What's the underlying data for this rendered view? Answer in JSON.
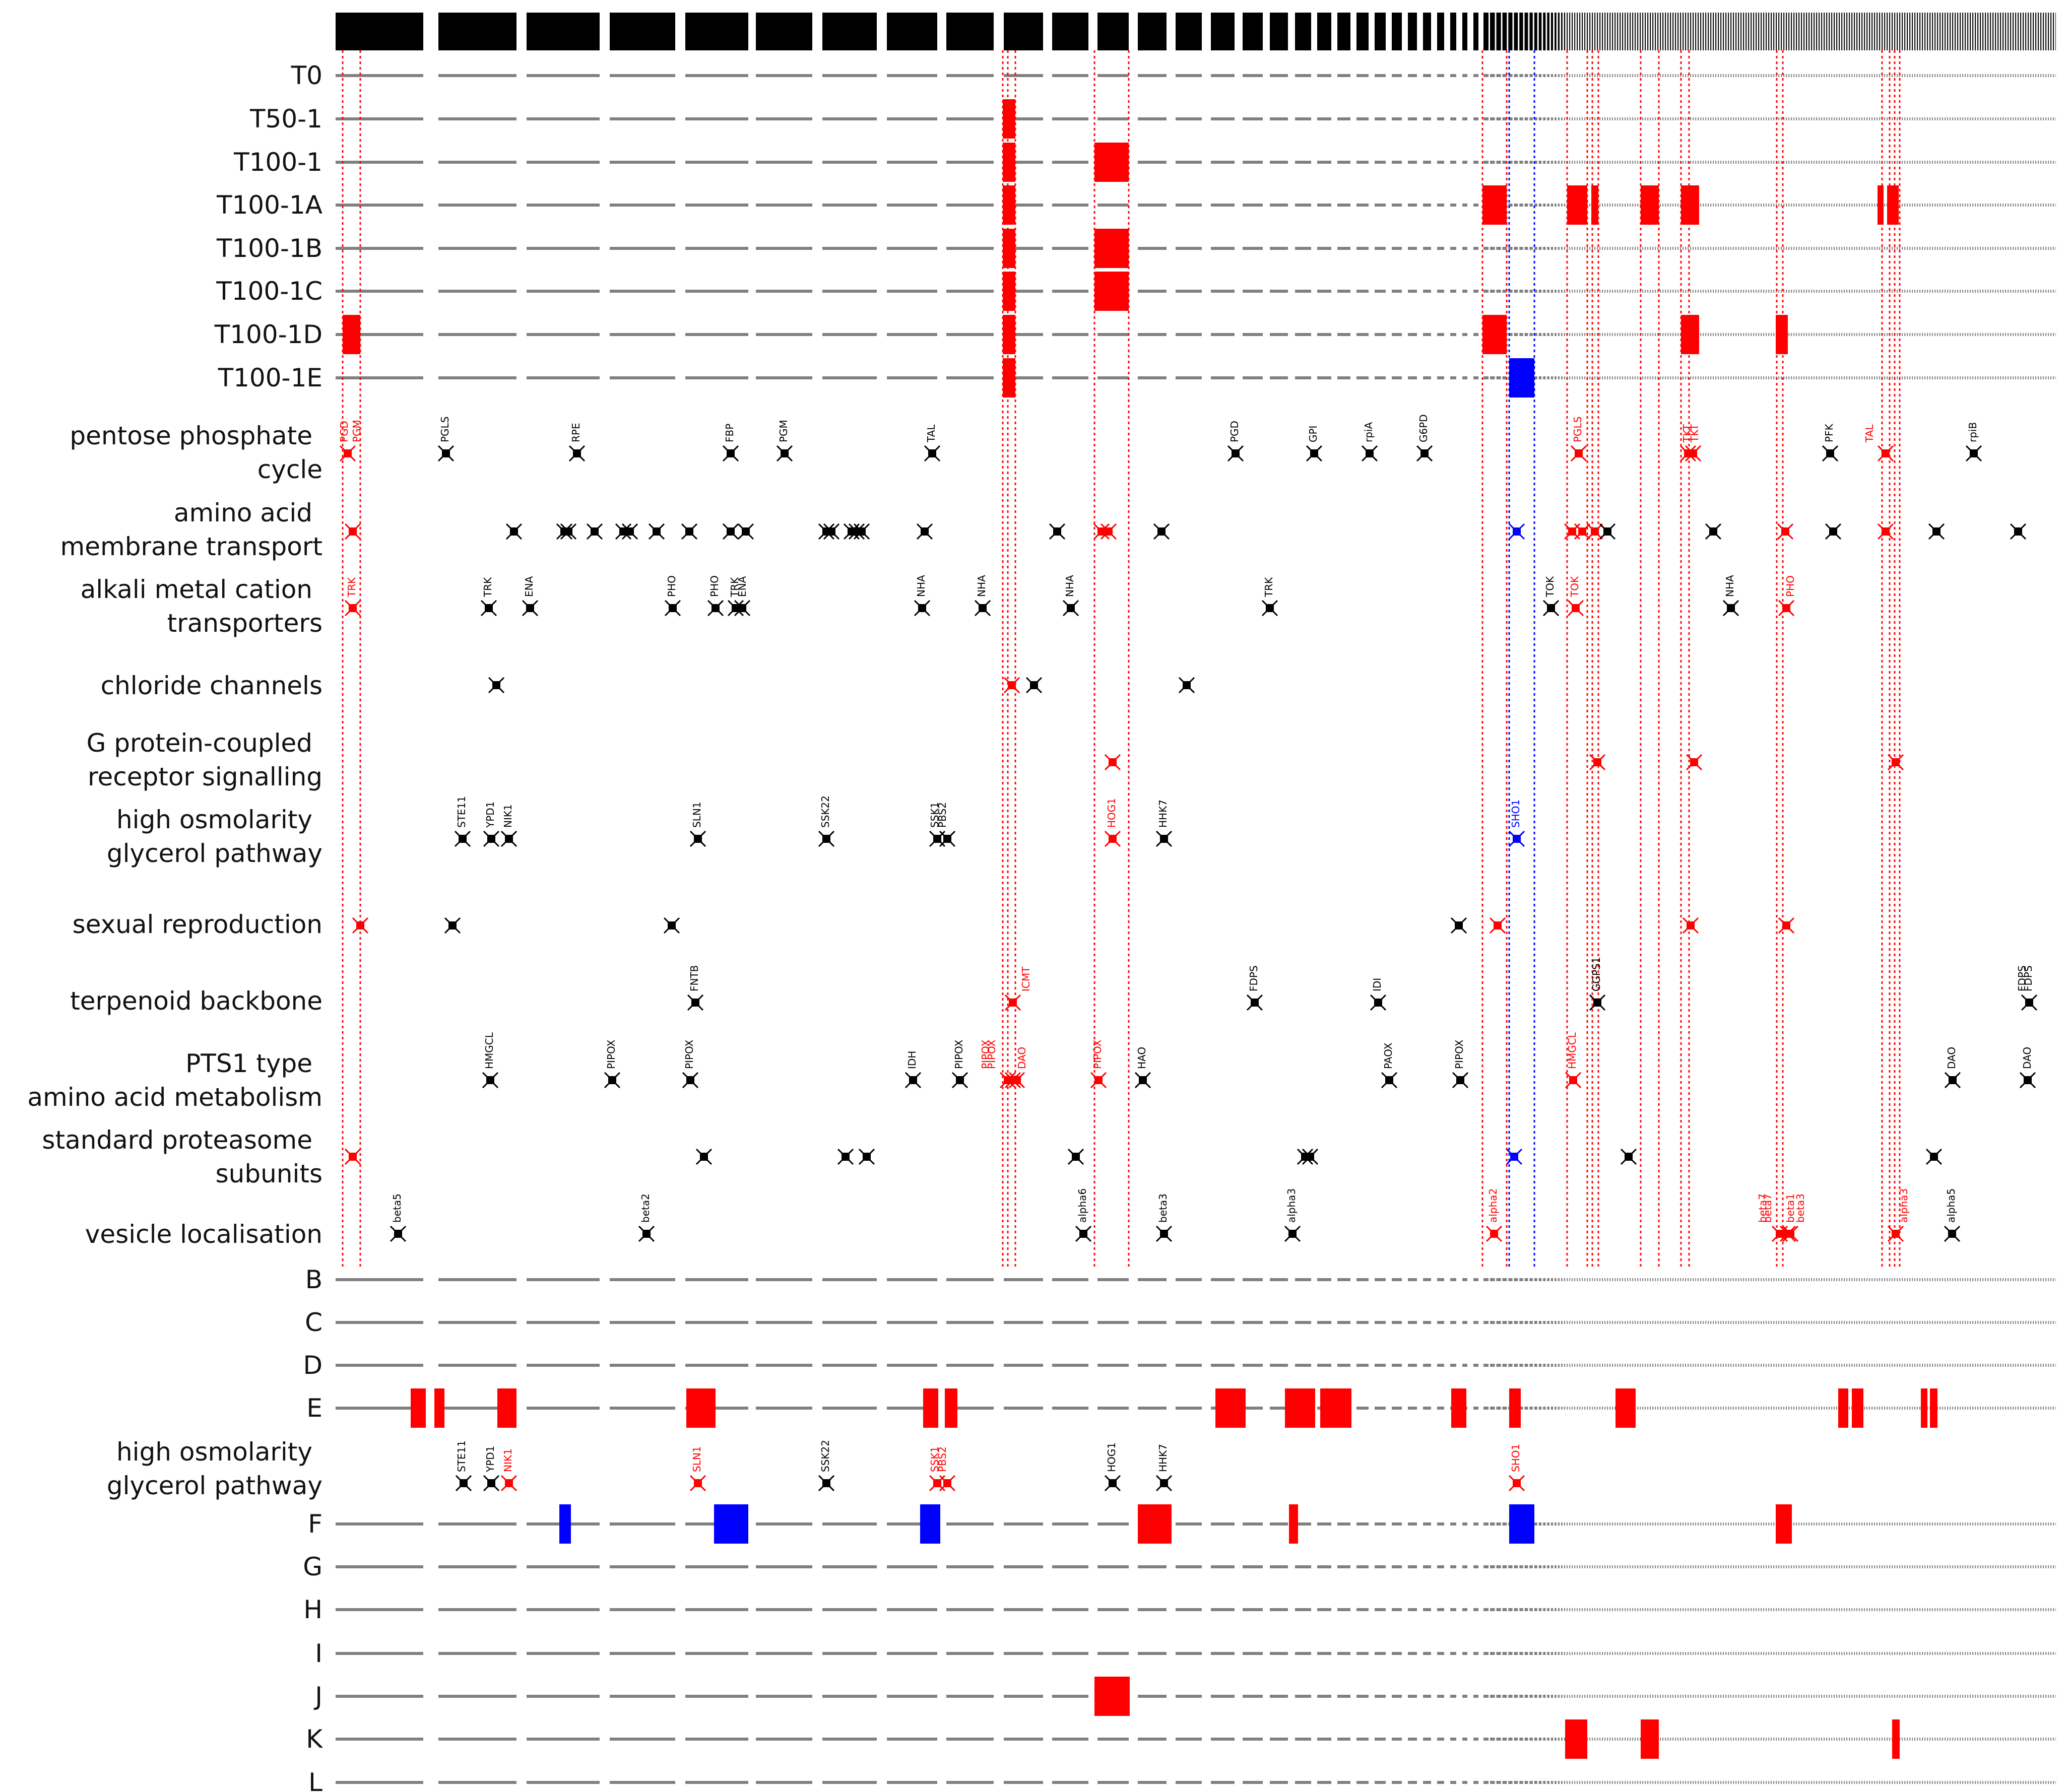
{
  "figure": {
    "colors": {
      "red": "#ff0000",
      "blue": "#0000ff",
      "black": "#000000",
      "gray": "#808080"
    },
    "samples_top": [
      "T0",
      "T50-1",
      "T100-1",
      "T100-1A",
      "T100-1B",
      "T100-1C",
      "T100-1D",
      "T100-1E"
    ],
    "samples_bottom_1": [
      "B",
      "C",
      "D",
      "E"
    ],
    "samples_bottom_2": [
      "F",
      "G",
      "H",
      "I",
      "J",
      "K",
      "L"
    ],
    "pathways": [
      {
        "id": "ppp",
        "line1": "pentose phosphate",
        "line2": "cycle"
      },
      {
        "id": "aat",
        "line1": "amino acid",
        "line2": "membrane transport"
      },
      {
        "id": "alk",
        "line1": "alkali metal cation",
        "line2": "transporters"
      },
      {
        "id": "chl",
        "line1": "chloride channels",
        "line2": ""
      },
      {
        "id": "gpc",
        "line1": "G protein-coupled",
        "line2": "receptor signalling"
      },
      {
        "id": "hog",
        "line1": "high osmolarity",
        "line2": "glycerol pathway"
      },
      {
        "id": "sex",
        "line1": "sexual reproduction",
        "line2": ""
      },
      {
        "id": "ter",
        "line1": "terpenoid backbone",
        "line2": ""
      },
      {
        "id": "pts",
        "line1": "PTS1 type",
        "line2": "amino acid metabolism"
      },
      {
        "id": "pro",
        "line1": "standard proteasome",
        "line2": "subunits"
      },
      {
        "id": "ves",
        "line1": "vesicle localisation",
        "line2": ""
      }
    ],
    "pathway_bottom": {
      "line1": "high osmolarity",
      "line2": "glycerol pathway"
    },
    "gene_labels": {
      "ppp": [
        [
          "PGD",
          "r"
        ],
        [
          "PGM",
          "r"
        ],
        [
          "PGLS",
          "k"
        ],
        [
          "RPE",
          "k"
        ],
        [
          "FBP",
          "k"
        ],
        [
          "PGM",
          "k"
        ],
        [
          "TAL",
          "k"
        ],
        [
          "PGD",
          "k"
        ],
        [
          "GPI",
          "k"
        ],
        [
          "rpiA",
          "k"
        ],
        [
          "G6PD",
          "k"
        ],
        [
          "PGLS",
          "r"
        ],
        [
          "TKT",
          "r"
        ],
        [
          "TKT",
          "r"
        ],
        [
          "PFK",
          "k"
        ],
        [
          "TAL",
          "r"
        ],
        [
          "rpiB",
          "k"
        ]
      ],
      "alk": [
        [
          "TRK",
          "r"
        ],
        [
          "TRK",
          "k"
        ],
        [
          "ENA",
          "k"
        ],
        [
          "PHO",
          "k"
        ],
        [
          "PHO",
          "k"
        ],
        [
          "TRK",
          "k"
        ],
        [
          "ENA",
          "k"
        ],
        [
          "NHA",
          "k"
        ],
        [
          "NHA",
          "k"
        ],
        [
          "NHA",
          "k"
        ],
        [
          "TRK",
          "k"
        ],
        [
          "TOK",
          "k"
        ],
        [
          "TOK",
          "r"
        ],
        [
          "NHA",
          "k"
        ],
        [
          "PHO",
          "r"
        ]
      ],
      "hog": [
        [
          "STE11",
          "k"
        ],
        [
          "YPD1",
          "k"
        ],
        [
          "NIK1",
          "k"
        ],
        [
          "SLN1",
          "k"
        ],
        [
          "SSK22",
          "k"
        ],
        [
          "SSK1",
          "k"
        ],
        [
          "PBS2",
          "k"
        ],
        [
          "HOG1",
          "r"
        ],
        [
          "HHK7",
          "k"
        ],
        [
          "SHO1",
          "b"
        ]
      ],
      "ter": [
        [
          "FNTB",
          "k"
        ],
        [
          "ICMT",
          "r"
        ],
        [
          "FDPS",
          "k"
        ],
        [
          "IDI",
          "k"
        ],
        [
          "GGPS1",
          "k"
        ],
        [
          "FDPS",
          "k"
        ],
        [
          "FDPS",
          "k"
        ]
      ],
      "pts": [
        [
          "HMGCL",
          "k"
        ],
        [
          "PIPOX",
          "k"
        ],
        [
          "PIPOX",
          "k"
        ],
        [
          "IDH",
          "k"
        ],
        [
          "PIPOX",
          "k"
        ],
        [
          "PIPOX",
          "r"
        ],
        [
          "PIPOX",
          "r"
        ],
        [
          "DAO",
          "r"
        ],
        [
          "PIPOX",
          "r"
        ],
        [
          "HAO",
          "k"
        ],
        [
          "PAOX",
          "k"
        ],
        [
          "PIPOX",
          "k"
        ],
        [
          "HMGCL",
          "r"
        ],
        [
          "DAO",
          "k"
        ],
        [
          "DAO",
          "k"
        ]
      ],
      "ves": [
        [
          "beta5",
          "k"
        ],
        [
          "beta2",
          "k"
        ],
        [
          "alpha6",
          "k"
        ],
        [
          "beta3",
          "k"
        ],
        [
          "alpha3",
          "k"
        ],
        [
          "alpha2",
          "r"
        ],
        [
          "beta7",
          "r"
        ],
        [
          "beta7",
          "r"
        ],
        [
          "beta1",
          "r"
        ],
        [
          "beta3",
          "r"
        ],
        [
          "alpha3",
          "r"
        ],
        [
          "alpha5",
          "k"
        ]
      ],
      "hog_bottom": [
        [
          "STE11",
          "k"
        ],
        [
          "YPD1",
          "k"
        ],
        [
          "NIK1",
          "r"
        ],
        [
          "SLN1",
          "r"
        ],
        [
          "SSK22",
          "k"
        ],
        [
          "SSK1",
          "r"
        ],
        [
          "PBS2",
          "r"
        ],
        [
          "HOG1",
          "k"
        ],
        [
          "HHK7",
          "k"
        ],
        [
          "SHO1",
          "r"
        ]
      ]
    }
  }
}
